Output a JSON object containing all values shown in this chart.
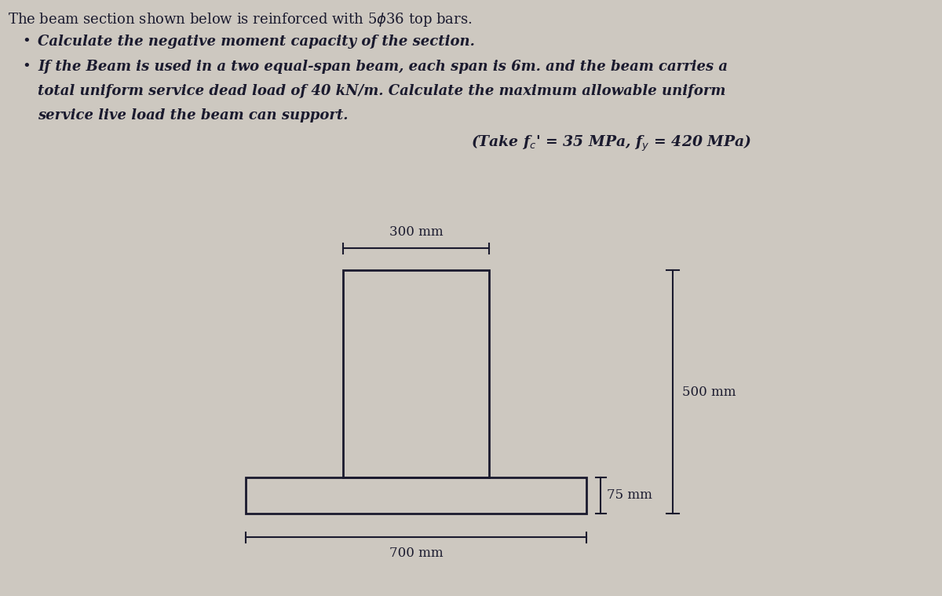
{
  "bg_color": "#cdc8c0",
  "text_color": "#1a1a2e",
  "line_color": "#1a1a2e",
  "fig_width": 12.0,
  "fig_height": 7.59,
  "dim_300": "300 mm",
  "dim_500": "500 mm",
  "dim_75": "75 mm",
  "dim_700": "700 mm",
  "title": "The beam section shown below is reinforced with 5ϐ36 top bars.",
  "bullet1": "Calculate the negative moment capacity of the section.",
  "b2l1": "If the Beam is used in a two equal-span beam, each span is 6m. and the beam carries a",
  "b2l2": "total uniform service dead load of 40 kN/m. Calculate the maximum allowable uniform",
  "b2l3": "service live load the beam can support.",
  "params": "(Take f₀′ = 35 MPa, fᵧ = 420 MPa)"
}
